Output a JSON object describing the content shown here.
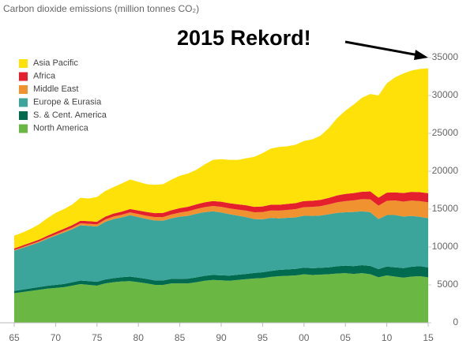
{
  "chart_data": {
    "type": "stacked_area",
    "title": "Carbon dioxide emissions (million tonnes CO₂)",
    "annotation": "2015 Rekord!",
    "x": [
      1965,
      1966,
      1967,
      1968,
      1969,
      1970,
      1971,
      1972,
      1973,
      1974,
      1975,
      1976,
      1977,
      1978,
      1979,
      1980,
      1981,
      1982,
      1983,
      1984,
      1985,
      1986,
      1987,
      1988,
      1989,
      1990,
      1991,
      1992,
      1993,
      1994,
      1995,
      1996,
      1997,
      1998,
      1999,
      2000,
      2001,
      2002,
      2003,
      2004,
      2005,
      2006,
      2007,
      2008,
      2009,
      2010,
      2011,
      2012,
      2013,
      2014,
      2015
    ],
    "series": [
      {
        "name": "Asia Pacific",
        "color": "#ffe10a",
        "values": [
          1700,
          1710,
          1820,
          2020,
          2310,
          2550,
          2590,
          2720,
          3040,
          2990,
          3260,
          3390,
          3480,
          3720,
          3890,
          3780,
          3680,
          3740,
          3800,
          4040,
          4270,
          4390,
          4570,
          5000,
          5430,
          5620,
          5720,
          5860,
          6190,
          6600,
          7050,
          7420,
          7630,
          7610,
          7700,
          7930,
          8090,
          8470,
          9210,
          10190,
          11000,
          11680,
          12410,
          12850,
          13490,
          14420,
          15190,
          15780,
          16020,
          16260,
          16500
        ]
      },
      {
        "name": "Africa",
        "color": "#e3202b",
        "values": [
          200,
          210,
          220,
          240,
          260,
          280,
          300,
          320,
          340,
          350,
          360,
          380,
          400,
          420,
          440,
          470,
          500,
          520,
          540,
          560,
          580,
          600,
          620,
          640,
          660,
          680,
          690,
          700,
          710,
          720,
          740,
          760,
          770,
          790,
          800,
          810,
          830,
          840,
          870,
          910,
          950,
          960,
          980,
          1050,
          1050,
          1080,
          1070,
          1130,
          1150,
          1180,
          1200
        ]
      },
      {
        "name": "Middle East",
        "color": "#f0922f",
        "values": [
          100,
          110,
          120,
          130,
          150,
          170,
          190,
          220,
          250,
          270,
          280,
          310,
          330,
          350,
          380,
          400,
          420,
          450,
          480,
          510,
          550,
          590,
          620,
          660,
          700,
          740,
          760,
          800,
          850,
          900,
          950,
          980,
          1020,
          1050,
          1090,
          1130,
          1180,
          1240,
          1300,
          1390,
          1460,
          1540,
          1600,
          1700,
          1770,
          1880,
          1920,
          1970,
          2030,
          2080,
          2100
        ]
      },
      {
        "name": "Europe & Eurasia",
        "color": "#3ba59b",
        "values": [
          5300,
          5500,
          5700,
          5900,
          6200,
          6500,
          6800,
          7000,
          7300,
          7300,
          7300,
          7600,
          7800,
          7900,
          8100,
          8000,
          7900,
          7900,
          7900,
          8000,
          8200,
          8300,
          8400,
          8400,
          8400,
          8300,
          8100,
          7800,
          7500,
          7100,
          7000,
          7000,
          6800,
          6800,
          6800,
          6850,
          6900,
          6900,
          7000,
          7050,
          7050,
          7150,
          7100,
          7100,
          6600,
          6800,
          6900,
          6800,
          6700,
          6500,
          6500
        ]
      },
      {
        "name": "S. & Cent. America",
        "color": "#006b4f",
        "values": [
          300,
          320,
          340,
          360,
          380,
          400,
          420,
          440,
          470,
          490,
          500,
          520,
          540,
          560,
          590,
          600,
          600,
          590,
          580,
          590,
          600,
          620,
          640,
          650,
          660,
          660,
          680,
          690,
          700,
          730,
          760,
          790,
          830,
          850,
          860,
          880,
          900,
          900,
          920,
          960,
          990,
          1020,
          1060,
          1100,
          1090,
          1170,
          1220,
          1270,
          1300,
          1330,
          1300
        ]
      },
      {
        "name": "North America",
        "color": "#6bb744",
        "values": [
          3900,
          4050,
          4200,
          4350,
          4500,
          4600,
          4700,
          4900,
          5100,
          5000,
          4900,
          5200,
          5350,
          5450,
          5500,
          5350,
          5200,
          5000,
          5000,
          5200,
          5200,
          5200,
          5350,
          5550,
          5650,
          5600,
          5550,
          5650,
          5750,
          5850,
          5900,
          6050,
          6150,
          6200,
          6250,
          6400,
          6300,
          6350,
          6400,
          6500,
          6550,
          6450,
          6550,
          6400,
          6000,
          6250,
          6100,
          5950,
          6100,
          6150,
          6000
        ]
      }
    ],
    "xlim": [
      1965,
      2015
    ],
    "xticks": [
      {
        "value": 1965,
        "label": "65"
      },
      {
        "value": 1970,
        "label": "70"
      },
      {
        "value": 1975,
        "label": "75"
      },
      {
        "value": 1980,
        "label": "80"
      },
      {
        "value": 1985,
        "label": "85"
      },
      {
        "value": 1990,
        "label": "90"
      },
      {
        "value": 1995,
        "label": "95"
      },
      {
        "value": 2000,
        "label": "00"
      },
      {
        "value": 2005,
        "label": "05"
      },
      {
        "value": 2010,
        "label": "10"
      },
      {
        "value": 2015,
        "label": "15"
      }
    ],
    "ylim": [
      0,
      35000
    ],
    "yticks": [
      0,
      5000,
      10000,
      15000,
      20000,
      25000,
      30000,
      35000
    ],
    "grid": false,
    "legend": "upper left"
  }
}
